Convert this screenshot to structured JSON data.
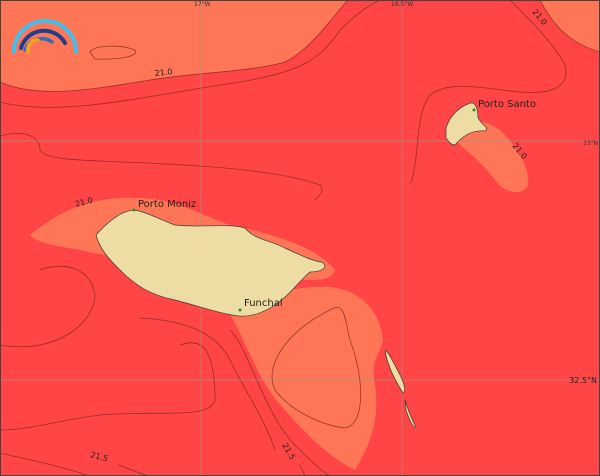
{
  "map": {
    "colors": {
      "warm_band": "#ff7656",
      "warmer_band": "#ff4545",
      "land": "#eedca5",
      "town_marker": "#1a9a1a"
    },
    "logo": "rainbow-arcs-logo",
    "grid": {
      "longitudes": [
        "17°W",
        "16.5°W"
      ],
      "latitudes": [
        "33°N",
        "32.5°N"
      ]
    },
    "places": [
      {
        "name": "Porto Santo"
      },
      {
        "name": "Porto Moniz"
      },
      {
        "name": "Funchal"
      }
    ],
    "contour_labels": [
      "21.0",
      "21.0",
      "21.0",
      "21.0",
      "21.5",
      "21.5"
    ]
  }
}
